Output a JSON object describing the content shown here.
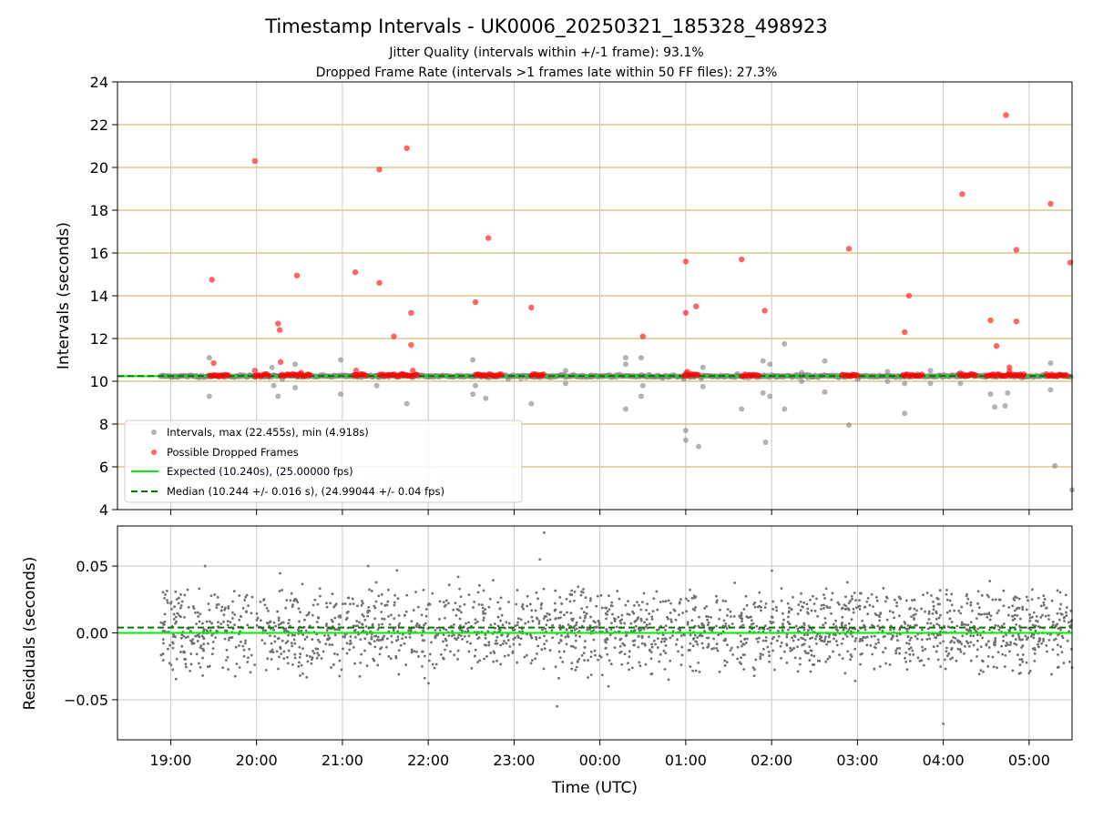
{
  "chart_data": [
    {
      "type": "scatter",
      "title": "Timestamp Intervals - UK0006_20250321_185328_498923",
      "subtitle_lines": [
        "Jitter Quality (intervals within +/-1 frame): 93.1%",
        "Dropped Frame Rate (intervals >1 frames late within 50 FF files): 27.3%"
      ],
      "ylabel": "Intervals (seconds)",
      "ylim": [
        4,
        24
      ],
      "yticks": [
        4,
        6,
        8,
        10,
        12,
        14,
        16,
        18,
        20,
        22,
        24
      ],
      "xlim": [
        18.38,
        29.5
      ],
      "grid": true,
      "legend_position": "lower-left",
      "colors": {
        "intervals": "#808080",
        "dropped": "#ff0000",
        "expected": "#00ee00",
        "median": "#007700",
        "hgrid": "#c8a850",
        "vgrid": "#c8c8c8"
      },
      "expected_value": 10.24,
      "median_value": 10.244,
      "baseline_band": {
        "x_start": 18.88,
        "x_end": 29.5,
        "y": 10.24
      },
      "dense_dropped_clusters": [
        [
          19.45,
          19.68
        ],
        [
          19.98,
          20.15
        ],
        [
          20.28,
          20.62
        ],
        [
          21.13,
          21.28
        ],
        [
          21.43,
          21.88
        ],
        [
          22.55,
          22.85
        ],
        [
          23.2,
          23.35
        ],
        [
          24.98,
          25.15
        ],
        [
          25.65,
          25.85
        ],
        [
          26.82,
          27.0
        ],
        [
          27.53,
          27.75
        ],
        [
          28.18,
          28.38
        ],
        [
          28.5,
          28.95
        ],
        [
          29.2,
          29.45
        ]
      ],
      "series": [
        {
          "name": "Intervals, max (22.455s), min (4.918s)",
          "legend_label": "Intervals, max (22.455s), min (4.918s)",
          "marker": "circle",
          "points": [
            [
              19.45,
              11.1
            ],
            [
              19.45,
              9.3
            ],
            [
              19.62,
              10.25
            ],
            [
              19.98,
              10.2
            ],
            [
              20.18,
              10.65
            ],
            [
              20.2,
              9.8
            ],
            [
              20.25,
              9.3
            ],
            [
              20.3,
              10.1
            ],
            [
              20.45,
              10.8
            ],
            [
              20.45,
              9.7
            ],
            [
              20.52,
              10.2
            ],
            [
              20.62,
              10.25
            ],
            [
              20.98,
              11.0
            ],
            [
              20.98,
              9.4
            ],
            [
              21.17,
              10.3
            ],
            [
              21.4,
              9.8
            ],
            [
              21.75,
              8.95
            ],
            [
              21.85,
              10.25
            ],
            [
              22.0,
              10.2
            ],
            [
              22.35,
              10.25
            ],
            [
              22.52,
              11.0
            ],
            [
              22.52,
              9.4
            ],
            [
              22.55,
              9.8
            ],
            [
              22.67,
              9.2
            ],
            [
              22.93,
              10.1
            ],
            [
              23.2,
              8.95
            ],
            [
              23.4,
              10.2
            ],
            [
              23.6,
              10.5
            ],
            [
              23.6,
              9.9
            ],
            [
              23.9,
              10.2
            ],
            [
              24.3,
              11.1
            ],
            [
              24.3,
              10.8
            ],
            [
              24.3,
              8.7
            ],
            [
              24.48,
              11.1
            ],
            [
              24.48,
              9.3
            ],
            [
              24.5,
              9.8
            ],
            [
              24.8,
              10.2
            ],
            [
              24.98,
              10.1
            ],
            [
              25.0,
              10.4
            ],
            [
              25.0,
              7.7
            ],
            [
              25.0,
              7.25
            ],
            [
              25.1,
              10.2
            ],
            [
              25.15,
              6.95
            ],
            [
              25.2,
              10.65
            ],
            [
              25.2,
              9.75
            ],
            [
              25.45,
              10.2
            ],
            [
              25.6,
              10.35
            ],
            [
              25.65,
              8.7
            ],
            [
              25.9,
              10.95
            ],
            [
              25.9,
              9.45
            ],
            [
              25.93,
              7.15
            ],
            [
              25.98,
              10.8
            ],
            [
              25.98,
              9.3
            ],
            [
              26.05,
              10.2
            ],
            [
              26.15,
              11.75
            ],
            [
              26.15,
              8.7
            ],
            [
              26.35,
              10.4
            ],
            [
              26.35,
              10.0
            ],
            [
              26.62,
              10.95
            ],
            [
              26.62,
              9.5
            ],
            [
              26.9,
              7.95
            ],
            [
              27.0,
              10.1
            ],
            [
              27.35,
              10.45
            ],
            [
              27.35,
              10.0
            ],
            [
              27.55,
              10.2
            ],
            [
              27.55,
              9.9
            ],
            [
              27.55,
              8.5
            ],
            [
              27.85,
              10.5
            ],
            [
              27.85,
              9.9
            ],
            [
              28.2,
              10.4
            ],
            [
              28.2,
              9.9
            ],
            [
              28.55,
              9.4
            ],
            [
              28.6,
              8.8
            ],
            [
              28.72,
              8.85
            ],
            [
              28.75,
              9.45
            ],
            [
              28.95,
              10.2
            ],
            [
              29.25,
              10.85
            ],
            [
              29.25,
              9.6
            ],
            [
              29.3,
              6.05
            ],
            [
              29.5,
              4.92
            ]
          ]
        },
        {
          "name": "Possible Dropped Frames",
          "legend_label": "Possible Dropped Frames",
          "marker": "circle",
          "points": [
            [
              19.48,
              14.75
            ],
            [
              19.5,
              10.85
            ],
            [
              19.98,
              20.3
            ],
            [
              19.98,
              10.5
            ],
            [
              20.25,
              12.7
            ],
            [
              20.27,
              12.4
            ],
            [
              20.28,
              10.9
            ],
            [
              20.47,
              14.95
            ],
            [
              20.52,
              10.4
            ],
            [
              21.15,
              15.1
            ],
            [
              21.16,
              10.5
            ],
            [
              21.43,
              19.9
            ],
            [
              21.43,
              14.6
            ],
            [
              21.6,
              12.1
            ],
            [
              21.7,
              10.35
            ],
            [
              21.75,
              20.9
            ],
            [
              21.8,
              13.2
            ],
            [
              21.8,
              11.7
            ],
            [
              21.82,
              10.5
            ],
            [
              22.55,
              13.7
            ],
            [
              22.7,
              16.7
            ],
            [
              23.2,
              13.45
            ],
            [
              24.5,
              12.1
            ],
            [
              25.0,
              15.6
            ],
            [
              25.0,
              13.2
            ],
            [
              25.02,
              10.45
            ],
            [
              25.12,
              13.5
            ],
            [
              25.65,
              15.7
            ],
            [
              25.92,
              13.3
            ],
            [
              26.9,
              16.2
            ],
            [
              27.6,
              14.0
            ],
            [
              27.55,
              12.3
            ],
            [
              28.22,
              18.75
            ],
            [
              28.55,
              12.85
            ],
            [
              28.62,
              11.65
            ],
            [
              28.73,
              22.45
            ],
            [
              28.77,
              10.65
            ],
            [
              28.77,
              10.45
            ],
            [
              28.85,
              16.15
            ],
            [
              28.85,
              12.8
            ],
            [
              29.25,
              18.3
            ],
            [
              29.48,
              15.55
            ]
          ]
        },
        {
          "name": "Expected (10.240s), (25.00000 fps)",
          "legend_label": "Expected (10.240s), (25.00000 fps)",
          "style": "solid-line",
          "y": 10.24
        },
        {
          "name": "Median (10.244 +/- 0.016 s), (24.99044 +/- 0.04 fps)",
          "legend_label": "Median (10.244 +/- 0.016 s), (24.99044 +/- 0.04 fps)",
          "style": "dashed-line",
          "y": 10.244
        }
      ]
    },
    {
      "type": "scatter",
      "title": "",
      "xlabel": "Time (UTC)",
      "ylabel": "Residuals (seconds)",
      "ylim": [
        -0.08,
        0.08
      ],
      "yticks": [
        -0.05,
        0.0,
        0.05
      ],
      "ytick_labels": [
        "−0.05",
        "0.00",
        "0.05"
      ],
      "xlim": [
        18.38,
        29.5
      ],
      "xticks": [
        19,
        20,
        21,
        22,
        23,
        24,
        25,
        26,
        27,
        28,
        29
      ],
      "xtick_labels": [
        "19:00",
        "20:00",
        "21:00",
        "22:00",
        "23:00",
        "00:00",
        "01:00",
        "02:00",
        "03:00",
        "04:00",
        "05:00"
      ],
      "grid": true,
      "colors": {
        "residuals": "#707070",
        "zero_line": "#00ee00",
        "median_line": "#007700"
      },
      "zero_line_y": 0.0,
      "median_offset_y": 0.004,
      "residual_bands": [
        {
          "center": 0.0,
          "spread": 0.007,
          "share": 0.55
        },
        {
          "center": 0.02,
          "spread": 0.007,
          "share": 0.3
        },
        {
          "center": -0.02,
          "spread": 0.006,
          "share": 0.15
        }
      ],
      "residual_outliers": [
        [
          23.35,
          0.075
        ],
        [
          23.3,
          0.055
        ],
        [
          23.5,
          -0.055
        ],
        [
          28.0,
          -0.068
        ],
        [
          24.1,
          -0.04
        ],
        [
          24.8,
          -0.035
        ],
        [
          19.4,
          0.05
        ],
        [
          21.3,
          0.05
        ],
        [
          28.9,
          -0.03
        ],
        [
          29.0,
          -0.03
        ]
      ],
      "residual_x_range": [
        18.88,
        29.5
      ],
      "residual_point_count": 2200
    }
  ]
}
